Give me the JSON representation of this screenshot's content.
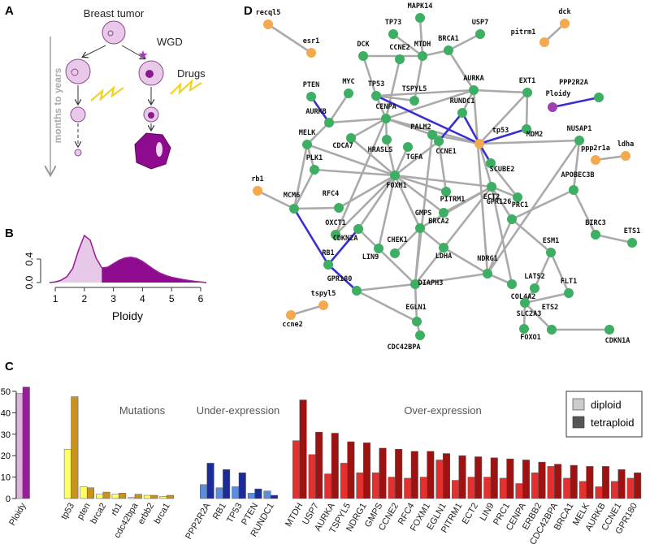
{
  "panel_labels": [
    "A",
    "B",
    "C",
    "D"
  ],
  "diagram": {
    "root": "Breast tumor",
    "branch": "WGD",
    "treatment": "Drugs",
    "time_axis": "months to years"
  },
  "chart_data": [
    {
      "type": "area",
      "x": [
        0.8,
        1.0,
        1.2,
        1.4,
        1.6,
        1.8,
        2.0,
        2.2,
        2.4,
        2.6,
        2.8,
        3.0,
        3.2,
        3.4,
        3.6,
        3.8,
        4.0,
        4.2,
        4.4,
        4.6,
        4.8,
        5.0,
        5.2,
        5.4,
        5.6,
        5.8,
        6.0,
        6.2
      ],
      "series": [
        {
          "color": "#e8c8e8",
          "values": [
            0,
            0.01,
            0.04,
            0.1,
            0.24,
            0.55,
            0.8,
            0.72,
            0.42,
            0.25,
            null,
            null,
            null,
            null,
            null,
            null,
            null,
            null,
            null,
            null,
            null,
            null,
            null,
            null,
            null,
            null,
            null,
            null
          ]
        },
        {
          "color": "#8e0a8e",
          "values": [
            null,
            null,
            null,
            null,
            null,
            null,
            null,
            null,
            null,
            0.25,
            0.26,
            0.32,
            0.38,
            0.42,
            0.43,
            0.41,
            0.36,
            0.29,
            0.22,
            0.16,
            0.12,
            0.09,
            0.07,
            0.05,
            0.035,
            0.02,
            0.01,
            0
          ]
        }
      ],
      "line_color": "#9a209a",
      "xlim": [
        0.7,
        6.3
      ],
      "ylim": [
        0,
        0.85
      ],
      "xticks": [
        1,
        2,
        3,
        4,
        5,
        6
      ],
      "yticks": [
        {
          "value": 0,
          "label": "0.0"
        },
        0.4
      ],
      "xlabel": "Ploidy"
    },
    {
      "type": "bar",
      "categories": [
        "Ploidy",
        "tp53",
        "pten",
        "brca2",
        "rb1",
        "cdc42bpa",
        "erbb2",
        "brca1",
        "PPP2R2A",
        "RB1",
        "TP53",
        "PTEN",
        "RUNDC1",
        "MTDH",
        "USP7",
        "AURKA",
        "TSPYL5",
        "NDRG1",
        "GMPS",
        "CCNE2",
        "RFC4",
        "FOXM1",
        "EGLN1",
        "PITRM1",
        "ECT2",
        "LIN9",
        "PRC1",
        "CENPA",
        "ERBB2",
        "CDC42BPA",
        "BRCA1",
        "MELK",
        "AURKB",
        "CCNE1",
        "GPR180"
      ],
      "series": [
        {
          "name": "diploid",
          "color": "#cccccc",
          "colors": [
            "#dcb4dc",
            "#ffff66",
            "#ffff66",
            "#ffff66",
            "#ffff66",
            "#ffff66",
            "#ffff66",
            "#ffff66",
            "#5b8ddf",
            "#5b8ddf",
            "#5b8ddf",
            "#5b8ddf",
            "#5b8ddf",
            "#e4302e",
            "#e4302e",
            "#e4302e",
            "#e4302e",
            "#e4302e",
            "#e4302e",
            "#e4302e",
            "#e4302e",
            "#e4302e",
            "#e4302e",
            "#e4302e",
            "#e4302e",
            "#e4302e",
            "#e4302e",
            "#e4302e",
            "#e4302e",
            "#e4302e",
            "#e4302e",
            "#e4302e",
            "#e4302e",
            "#e4302e",
            "#e4302e"
          ],
          "values": [
            49,
            23,
            5.5,
            2,
            2,
            0.5,
            1.5,
            1,
            6.5,
            5,
            5.5,
            2.5,
            3.5,
            27,
            20.5,
            11.5,
            16.5,
            12,
            12,
            10,
            9.5,
            10,
            18,
            8.5,
            10,
            10,
            9.5,
            7,
            12,
            15,
            9.5,
            8,
            5.5,
            8,
            9.5
          ]
        },
        {
          "name": "tetraploid",
          "color": "#555555",
          "colors": [
            "#9b1c9b",
            "#c8921e",
            "#c8921e",
            "#c8921e",
            "#c8921e",
            "#c8921e",
            "#c8921e",
            "#c8921e",
            "#1c2b9c",
            "#1c2b9c",
            "#1c2b9c",
            "#1c2b9c",
            "#1c2b9c",
            "#9e1212",
            "#9e1212",
            "#9e1212",
            "#9e1212",
            "#9e1212",
            "#9e1212",
            "#9e1212",
            "#9e1212",
            "#9e1212",
            "#9e1212",
            "#9e1212",
            "#9e1212",
            "#9e1212",
            "#9e1212",
            "#9e1212",
            "#9e1212",
            "#9e1212",
            "#9e1212",
            "#9e1212",
            "#9e1212",
            "#9e1212",
            "#9e1212"
          ],
          "values": [
            52,
            47.5,
            5,
            3,
            2.5,
            2,
            1.5,
            1.5,
            16.5,
            13.5,
            12,
            4.5,
            1.5,
            46,
            31,
            30.5,
            26.5,
            26,
            23.5,
            23,
            22,
            22,
            21,
            20,
            19.5,
            19,
            18.5,
            18,
            17,
            16,
            15.5,
            15,
            15,
            13.5,
            12
          ]
        }
      ],
      "ylim": [
        0,
        53
      ],
      "yticks": [
        0,
        10,
        20,
        30,
        40,
        50
      ],
      "annotations": [
        "Mutations",
        "Under-expression",
        "Over-expression"
      ],
      "legend": "top-right"
    }
  ],
  "network": {
    "edge_color": "#aaaaaa",
    "highlight_color": "#3a30d0",
    "nodes": [
      {
        "label": "recql5",
        "color": "#f5a94e"
      },
      {
        "label": "esr1",
        "color": "#f5a94e"
      },
      {
        "label": "MAPK14",
        "color": "#3daf62"
      },
      {
        "label": "TP73",
        "color": "#3daf62"
      },
      {
        "label": "USP7",
        "color": "#3daf62"
      },
      {
        "label": "dck",
        "color": "#f5a94e"
      },
      {
        "label": "pitrm1",
        "color": "#f5a94e"
      },
      {
        "label": "DCK",
        "color": "#3daf62"
      },
      {
        "label": "MTDH",
        "color": "#3daf62"
      },
      {
        "label": "BRCA1",
        "color": "#3daf62"
      },
      {
        "label": "CCNE2",
        "color": "#3daf62"
      },
      {
        "label": "PTEN",
        "color": "#3daf62"
      },
      {
        "label": "MYC",
        "color": "#3daf62"
      },
      {
        "label": "TP53",
        "color": "#3daf62"
      },
      {
        "label": "TSPYL5",
        "color": "#3daf62"
      },
      {
        "label": "AURKA",
        "color": "#3daf62"
      },
      {
        "label": "EXT1",
        "color": "#3daf62"
      },
      {
        "label": "PPP2R2A",
        "color": "#3daf62"
      },
      {
        "label": "Ploidy",
        "color": "#a040b0"
      },
      {
        "label": "RUNDC1",
        "color": "#3daf62"
      },
      {
        "label": "AURKB",
        "color": "#3daf62"
      },
      {
        "label": "CENPA",
        "color": "#3daf62"
      },
      {
        "label": "PALM2",
        "color": "#3daf62"
      },
      {
        "label": "tp53",
        "color": "#f5a94e"
      },
      {
        "label": "MDM2",
        "color": "#3daf62"
      },
      {
        "label": "NUSAP1",
        "color": "#3daf62"
      },
      {
        "label": "MELK",
        "color": "#3daf62"
      },
      {
        "label": "CDCA7",
        "color": "#3daf62"
      },
      {
        "label": "PLK1",
        "color": "#3daf62"
      },
      {
        "label": "HRASLS",
        "color": "#3daf62"
      },
      {
        "label": "TGFA",
        "color": "#3daf62"
      },
      {
        "label": "CCNE1",
        "color": "#3daf62"
      },
      {
        "label": "ppp2r1a",
        "color": "#f5a94e"
      },
      {
        "label": "ldha",
        "color": "#f5a94e"
      },
      {
        "label": "rb1",
        "color": "#f5a94e"
      },
      {
        "label": "APOBEC3B",
        "color": "#3daf62"
      },
      {
        "label": "SCUBE2",
        "color": "#3daf62"
      },
      {
        "label": "ECT2",
        "color": "#3daf62"
      },
      {
        "label": "PITRM1",
        "color": "#3daf62"
      },
      {
        "label": "FOXM1",
        "color": "#3daf62"
      },
      {
        "label": "RFC4",
        "color": "#3daf62"
      },
      {
        "label": "MCM6",
        "color": "#3daf62"
      },
      {
        "label": "GPR126",
        "color": "#3daf62"
      },
      {
        "label": "PRC1",
        "color": "#3daf62"
      },
      {
        "label": "GMPS",
        "color": "#3daf62"
      },
      {
        "label": "OXCT1",
        "color": "#3daf62"
      },
      {
        "label": "BRCA2",
        "color": "#3daf62"
      },
      {
        "label": "BIRC3",
        "color": "#3daf62"
      },
      {
        "label": "ETS1",
        "color": "#3daf62"
      },
      {
        "label": "CDKN2A",
        "color": "#3daf62"
      },
      {
        "label": "CHEK1",
        "color": "#3daf62"
      },
      {
        "label": "ESM1",
        "color": "#3daf62"
      },
      {
        "label": "RB1",
        "color": "#3daf62"
      },
      {
        "label": "LIN9",
        "color": "#3daf62"
      },
      {
        "label": "LDHA",
        "color": "#3daf62"
      },
      {
        "label": "NDRG1",
        "color": "#3daf62"
      },
      {
        "label": "LATS2",
        "color": "#3daf62"
      },
      {
        "label": "FLT1",
        "color": "#3daf62"
      },
      {
        "label": "GPR180",
        "color": "#3daf62"
      },
      {
        "label": "DIAPH3",
        "color": "#3daf62"
      },
      {
        "label": "COL4A2",
        "color": "#3daf62"
      },
      {
        "label": "tspyl5",
        "color": "#f5a94e"
      },
      {
        "label": "ETS2",
        "color": "#3daf62"
      },
      {
        "label": "SLC2A3",
        "color": "#3daf62"
      },
      {
        "label": "EGLN1",
        "color": "#3daf62"
      },
      {
        "label": "ccne2",
        "color": "#f5a94e"
      },
      {
        "label": "FOXO1",
        "color": "#3daf62"
      },
      {
        "label": "CDKN1A",
        "color": "#3daf62"
      },
      {
        "label": "CDC42BPA",
        "color": "#3daf62"
      }
    ]
  }
}
